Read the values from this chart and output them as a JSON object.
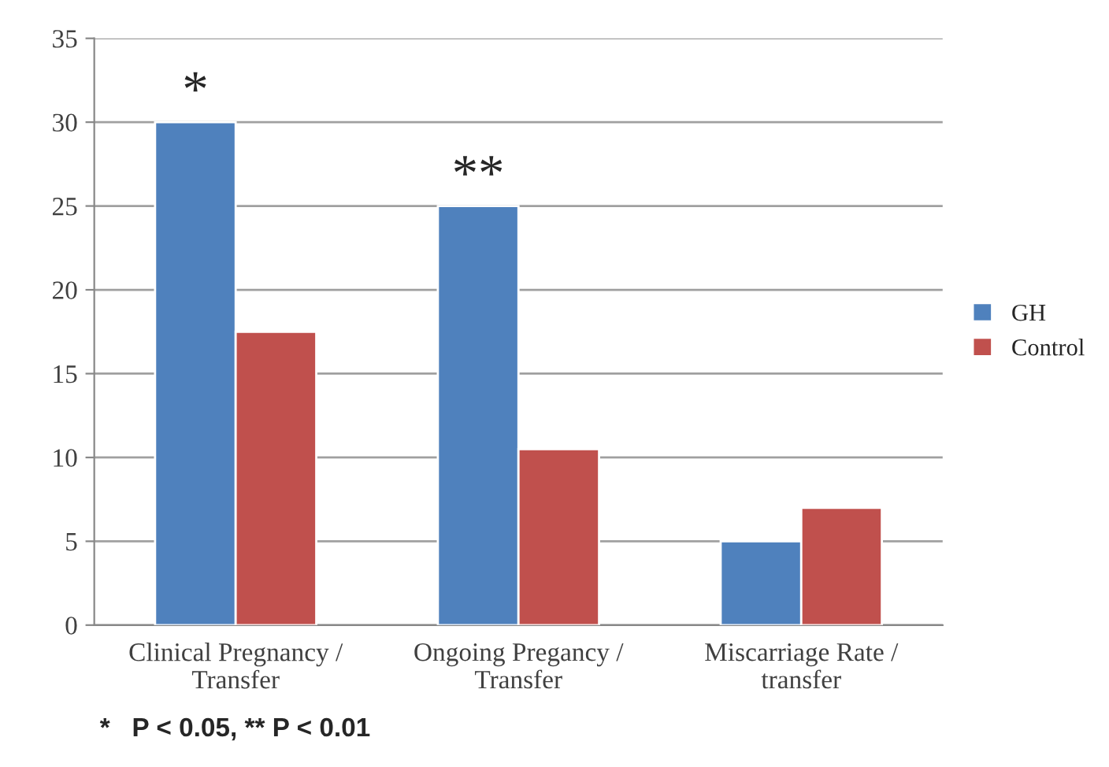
{
  "chart_data": {
    "type": "bar",
    "categories": [
      "Clinical Pregnancy /\nTransfer",
      "Ongoing Pregancy /\nTransfer",
      "Miscarriage Rate /\ntransfer"
    ],
    "series": [
      {
        "name": "GH",
        "color": "#4f81bd",
        "values": [
          30,
          25,
          5
        ]
      },
      {
        "name": "Control",
        "color": "#c0504d",
        "values": [
          17.5,
          10.5,
          7
        ]
      }
    ],
    "ylim": [
      0,
      35
    ],
    "yticks": [
      0,
      5,
      10,
      15,
      20,
      25,
      30,
      35
    ],
    "grid": "y",
    "legend": "right",
    "annotations": [
      {
        "text": "*",
        "x": "Clinical Pregnancy /\nTransfer",
        "y": 30
      },
      {
        "text": "**",
        "x": "Ongoing Pregancy /\nTransfer",
        "y": 25
      },
      "*   P < 0.05, ** P < 0.01"
    ]
  }
}
